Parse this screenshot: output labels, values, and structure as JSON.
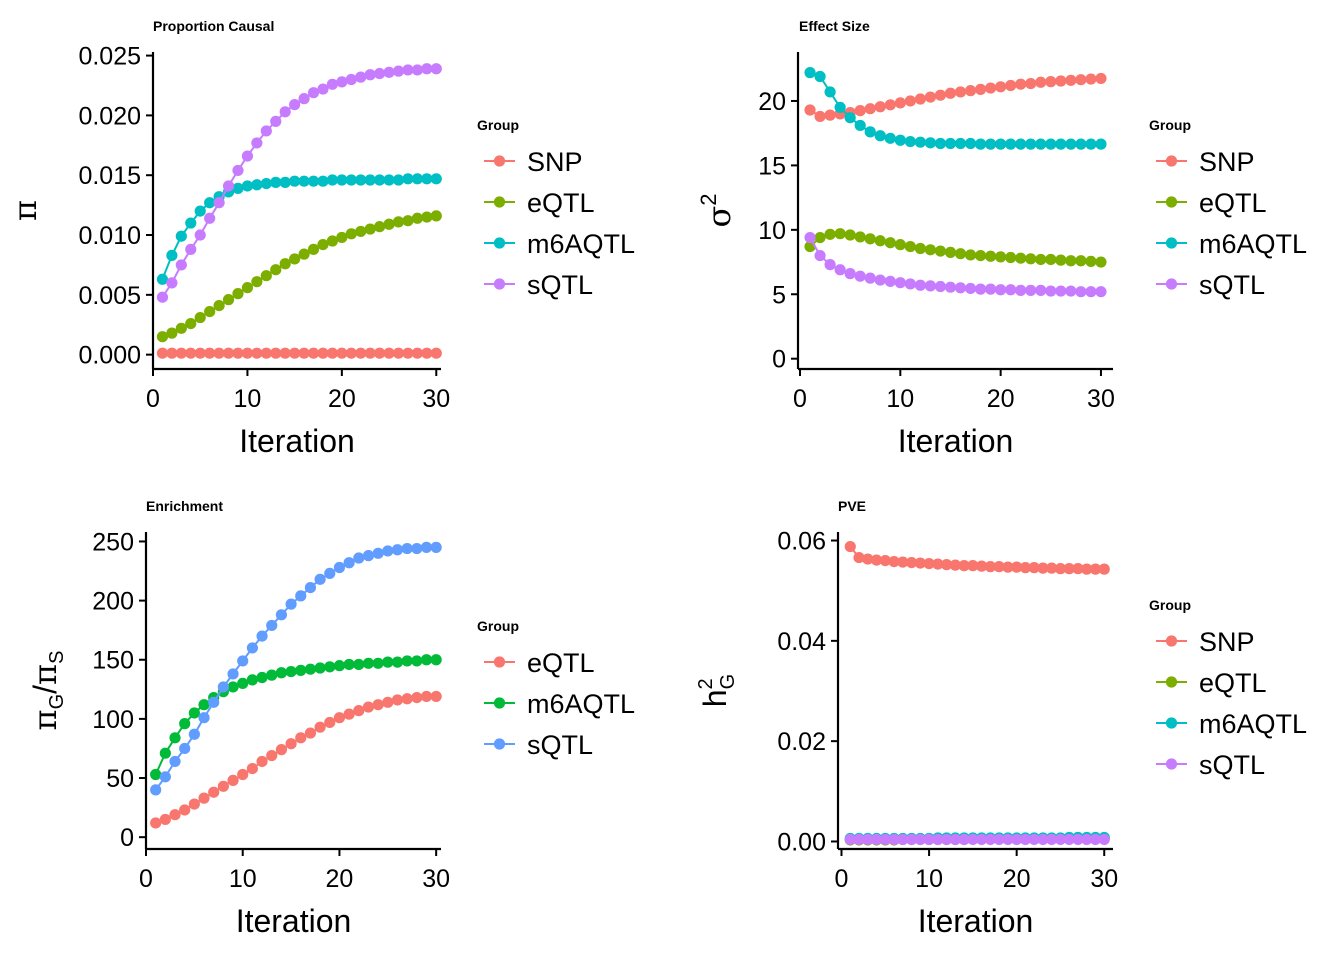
{
  "chart_data": [
    {
      "type": "line",
      "title": "Proportion Causal",
      "xlabel": "Iteration",
      "ylabel": "π",
      "xlim": [
        0,
        30.5
      ],
      "ylim": [
        -0.0012,
        0.0253
      ],
      "xticks": [
        0,
        10,
        20,
        30
      ],
      "yticks": [
        0.0,
        0.005,
        0.01,
        0.015,
        0.02,
        0.025
      ],
      "ytick_labels": [
        "0.000",
        "0.005",
        "0.010",
        "0.015",
        "0.020",
        "0.025"
      ],
      "grid": false,
      "legend": {
        "title": "Group",
        "position": "right"
      },
      "x": [
        1,
        2,
        3,
        4,
        5,
        6,
        7,
        8,
        9,
        10,
        11,
        12,
        13,
        14,
        15,
        16,
        17,
        18,
        19,
        20,
        21,
        22,
        23,
        24,
        25,
        26,
        27,
        28,
        29,
        30
      ],
      "series": [
        {
          "name": "SNP",
          "color": "#F8766D",
          "values": [
            0.00012,
            0.00012,
            0.00012,
            0.00012,
            0.00012,
            0.00012,
            0.00012,
            0.00012,
            0.00012,
            0.00012,
            0.00012,
            0.00012,
            0.00012,
            0.00012,
            0.00012,
            0.00012,
            0.00012,
            0.00012,
            0.00012,
            0.00012,
            0.00012,
            0.00012,
            0.00012,
            0.00012,
            0.00012,
            0.00012,
            0.00012,
            0.00012,
            0.00012,
            0.00012
          ]
        },
        {
          "name": "eQTL",
          "color": "#7CAE00",
          "values": [
            0.0015,
            0.0018,
            0.0022,
            0.0026,
            0.0031,
            0.0036,
            0.0041,
            0.0046,
            0.0051,
            0.0056,
            0.0061,
            0.0066,
            0.0071,
            0.0076,
            0.008,
            0.0084,
            0.0088,
            0.0092,
            0.0095,
            0.0098,
            0.0101,
            0.0103,
            0.0105,
            0.0107,
            0.0109,
            0.0111,
            0.0112,
            0.0114,
            0.0115,
            0.0116
          ]
        },
        {
          "name": "m6AQTL",
          "color": "#00BFC4",
          "values": [
            0.0063,
            0.0083,
            0.0099,
            0.011,
            0.012,
            0.0127,
            0.0132,
            0.0136,
            0.0139,
            0.0141,
            0.0142,
            0.0143,
            0.0144,
            0.0144,
            0.0145,
            0.0145,
            0.0145,
            0.0145,
            0.0146,
            0.0146,
            0.0146,
            0.0146,
            0.0146,
            0.0146,
            0.0146,
            0.0146,
            0.0147,
            0.0147,
            0.0147,
            0.0147
          ]
        },
        {
          "name": "sQTL",
          "color": "#C77CFF",
          "values": [
            0.0048,
            0.006,
            0.0075,
            0.0088,
            0.01,
            0.0114,
            0.0127,
            0.0141,
            0.0154,
            0.0166,
            0.0177,
            0.0187,
            0.0195,
            0.0203,
            0.0209,
            0.0214,
            0.0219,
            0.0222,
            0.0226,
            0.0228,
            0.023,
            0.0232,
            0.0234,
            0.0235,
            0.0236,
            0.0237,
            0.0238,
            0.0238,
            0.0239,
            0.0239
          ]
        }
      ]
    },
    {
      "type": "line",
      "title": "Effect Size",
      "xlabel": "Iteration",
      "ylabel": "σ",
      "ylabel_superscript": "2",
      "xlim": [
        -0.2,
        31.2
      ],
      "ylim": [
        -0.8,
        23.8
      ],
      "xticks": [
        0,
        10,
        20,
        30
      ],
      "yticks": [
        0,
        5,
        10,
        15,
        20
      ],
      "ytick_labels": [
        "0",
        "5",
        "10",
        "15",
        "20"
      ],
      "grid": false,
      "legend": {
        "title": "Group",
        "position": "right"
      },
      "x": [
        1,
        2,
        3,
        4,
        5,
        6,
        7,
        8,
        9,
        10,
        11,
        12,
        13,
        14,
        15,
        16,
        17,
        18,
        19,
        20,
        21,
        22,
        23,
        24,
        25,
        26,
        27,
        28,
        29,
        30
      ],
      "series": [
        {
          "name": "SNP",
          "color": "#F8766D",
          "values": [
            19.3,
            18.8,
            18.9,
            19.0,
            19.1,
            19.25,
            19.4,
            19.55,
            19.7,
            19.85,
            20.0,
            20.15,
            20.3,
            20.45,
            20.6,
            20.7,
            20.8,
            20.9,
            21.0,
            21.1,
            21.2,
            21.3,
            21.35,
            21.45,
            21.5,
            21.55,
            21.6,
            21.65,
            21.7,
            21.75
          ]
        },
        {
          "name": "eQTL",
          "color": "#7CAE00",
          "values": [
            8.7,
            9.4,
            9.65,
            9.7,
            9.6,
            9.45,
            9.3,
            9.15,
            9.0,
            8.85,
            8.7,
            8.55,
            8.45,
            8.35,
            8.25,
            8.15,
            8.05,
            8.0,
            7.95,
            7.9,
            7.85,
            7.8,
            7.75,
            7.7,
            7.7,
            7.65,
            7.6,
            7.6,
            7.55,
            7.5
          ]
        },
        {
          "name": "m6AQTL",
          "color": "#00BFC4",
          "values": [
            22.2,
            21.9,
            20.7,
            19.5,
            18.7,
            18.1,
            17.6,
            17.3,
            17.1,
            16.95,
            16.85,
            16.8,
            16.75,
            16.7,
            16.7,
            16.7,
            16.7,
            16.65,
            16.65,
            16.65,
            16.65,
            16.65,
            16.65,
            16.65,
            16.65,
            16.65,
            16.65,
            16.65,
            16.65,
            16.65
          ]
        },
        {
          "name": "sQTL",
          "color": "#C77CFF",
          "values": [
            9.4,
            8.0,
            7.3,
            6.9,
            6.6,
            6.4,
            6.25,
            6.1,
            6.0,
            5.9,
            5.8,
            5.7,
            5.65,
            5.6,
            5.55,
            5.5,
            5.45,
            5.4,
            5.4,
            5.35,
            5.35,
            5.3,
            5.3,
            5.3,
            5.25,
            5.25,
            5.25,
            5.2,
            5.2,
            5.2
          ]
        }
      ]
    },
    {
      "type": "line",
      "title": "Enrichment",
      "xlabel": "Iteration",
      "ylabel": "πG/πS",
      "xlim": [
        0,
        30.5
      ],
      "ylim": [
        -10,
        258
      ],
      "xticks": [
        0,
        10,
        20,
        30
      ],
      "yticks": [
        0,
        50,
        100,
        150,
        200,
        250
      ],
      "ytick_labels": [
        "0",
        "50",
        "100",
        "150",
        "200",
        "250"
      ],
      "grid": false,
      "legend": {
        "title": "Group",
        "position": "right"
      },
      "x": [
        1,
        2,
        3,
        4,
        5,
        6,
        7,
        8,
        9,
        10,
        11,
        12,
        13,
        14,
        15,
        16,
        17,
        18,
        19,
        20,
        21,
        22,
        23,
        24,
        25,
        26,
        27,
        28,
        29,
        30
      ],
      "series": [
        {
          "name": "eQTL",
          "color": "#F8766D",
          "values": [
            12,
            15,
            19,
            23,
            28,
            33,
            38,
            43,
            48,
            53,
            58,
            64,
            69,
            74,
            79,
            84,
            88,
            93,
            97,
            101,
            104,
            107,
            110,
            112,
            114,
            116,
            117,
            118,
            119,
            119
          ]
        },
        {
          "name": "m6AQTL",
          "color": "#00BA38",
          "values": [
            53,
            71,
            84,
            96,
            105,
            112,
            118,
            123,
            127,
            130,
            133,
            135,
            137,
            139,
            140,
            141,
            142,
            143,
            144,
            145,
            146,
            146,
            147,
            147,
            148,
            148,
            149,
            149,
            150,
            150
          ]
        },
        {
          "name": "sQTL",
          "color": "#619CFF",
          "values": [
            40,
            51,
            64,
            75,
            87,
            101,
            114,
            127,
            138,
            149,
            160,
            170,
            179,
            188,
            197,
            204,
            211,
            218,
            223,
            228,
            232,
            236,
            238,
            240,
            242,
            243,
            244,
            244,
            245,
            245
          ]
        }
      ]
    },
    {
      "type": "line",
      "title": "PVE",
      "xlabel": "Iteration",
      "ylabel": "h",
      "ylabel_superscript": "2",
      "ylabel_subscript": "G",
      "xlim": [
        -0.4,
        31.0
      ],
      "ylim": [
        -0.0015,
        0.0617
      ],
      "xticks": [
        0,
        10,
        20,
        30
      ],
      "yticks": [
        0.0,
        0.02,
        0.04,
        0.06
      ],
      "ytick_labels": [
        "0.00",
        "0.02",
        "0.04",
        "0.06"
      ],
      "grid": false,
      "legend": {
        "title": "Group",
        "position": "right"
      },
      "x": [
        1,
        2,
        3,
        4,
        5,
        6,
        7,
        8,
        9,
        10,
        11,
        12,
        13,
        14,
        15,
        16,
        17,
        18,
        19,
        20,
        21,
        22,
        23,
        24,
        25,
        26,
        27,
        28,
        29,
        30
      ],
      "series": [
        {
          "name": "SNP",
          "color": "#F8766D",
          "values": [
            0.0588,
            0.0566,
            0.0563,
            0.0561,
            0.056,
            0.0558,
            0.0557,
            0.0556,
            0.0555,
            0.0554,
            0.0553,
            0.0552,
            0.0551,
            0.055,
            0.055,
            0.0549,
            0.0548,
            0.0548,
            0.0547,
            0.0547,
            0.0546,
            0.0546,
            0.0545,
            0.0545,
            0.0544,
            0.0544,
            0.0544,
            0.0543,
            0.0543,
            0.0543
          ]
        },
        {
          "name": "eQTL",
          "color": "#7CAE00",
          "values": [
            0.0003,
            0.0003,
            0.0003,
            0.0003,
            0.0003,
            0.0003,
            0.0004,
            0.0004,
            0.0004,
            0.0004,
            0.0004,
            0.0004,
            0.0004,
            0.0004,
            0.0005,
            0.0005,
            0.0005,
            0.0005,
            0.0005,
            0.0005,
            0.0005,
            0.0005,
            0.0005,
            0.0005,
            0.0005,
            0.0005,
            0.0006,
            0.0006,
            0.0006,
            0.0006
          ]
        },
        {
          "name": "m6AQTL",
          "color": "#00BFC4",
          "values": [
            0.0006,
            0.0006,
            0.0006,
            0.0006,
            0.0006,
            0.0006,
            0.0006,
            0.0006,
            0.0006,
            0.0006,
            0.0007,
            0.0007,
            0.0007,
            0.0007,
            0.0007,
            0.0007,
            0.0007,
            0.0007,
            0.0007,
            0.0007,
            0.0007,
            0.0007,
            0.0007,
            0.0007,
            0.0007,
            0.0008,
            0.0008,
            0.0008,
            0.0008,
            0.0008
          ]
        },
        {
          "name": "sQTL",
          "color": "#C77CFF",
          "values": [
            0.0004,
            0.0004,
            0.0004,
            0.0004,
            0.0004,
            0.0004,
            0.0004,
            0.0004,
            0.0004,
            0.0004,
            0.0004,
            0.0004,
            0.0004,
            0.0004,
            0.0004,
            0.0004,
            0.0004,
            0.0004,
            0.0004,
            0.0004,
            0.0004,
            0.0004,
            0.0004,
            0.0004,
            0.0004,
            0.0004,
            0.0004,
            0.0004,
            0.0004,
            0.0004
          ]
        }
      ]
    }
  ]
}
